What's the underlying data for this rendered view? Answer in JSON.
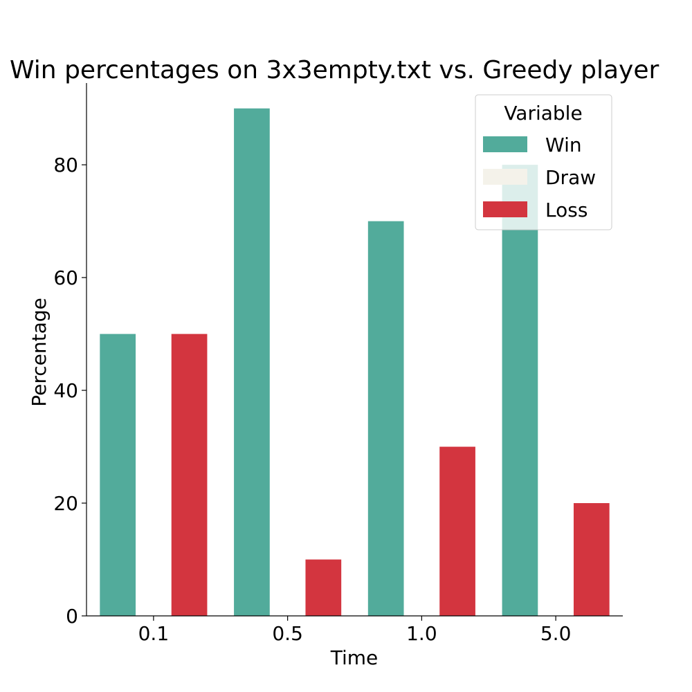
{
  "chart_data": {
    "type": "bar",
    "title": "Win percentages on 3x3empty.txt vs. Greedy player",
    "xlabel": "Time",
    "ylabel": "Percentage",
    "categories": [
      "0.1",
      "0.5",
      "1.0",
      "5.0"
    ],
    "series": [
      {
        "name": "Win",
        "values": [
          50,
          90,
          70,
          80
        ],
        "color": "#52ab9b"
      },
      {
        "name": "Draw",
        "values": [
          0,
          0,
          0,
          0
        ],
        "color": "#f4f2ea"
      },
      {
        "name": "Loss",
        "values": [
          50,
          10,
          30,
          20
        ],
        "color": "#d3353f"
      }
    ],
    "ylim": [
      0,
      94.5
    ],
    "yticks": [
      0,
      20,
      40,
      60,
      80
    ],
    "grid": false,
    "legend": {
      "title": "Variable",
      "placement": "top-right"
    }
  }
}
